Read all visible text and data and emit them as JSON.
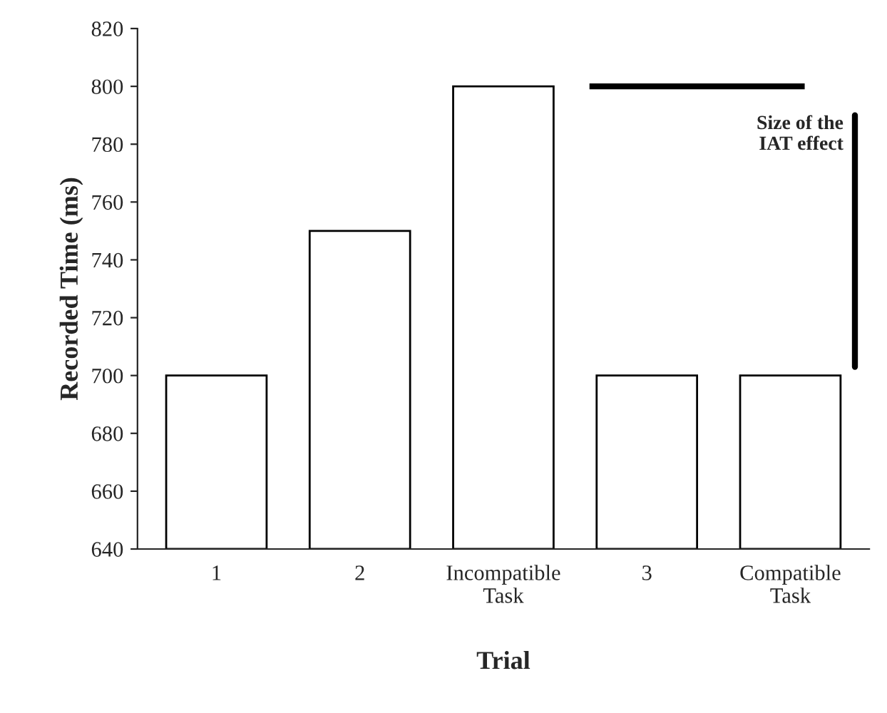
{
  "chart_data": {
    "type": "bar",
    "xlabel": "Trial",
    "ylabel": "Recorded Time (ms)",
    "categories": [
      "1",
      "2",
      "Incompatible\nTask",
      "3",
      "Compatible\nTask"
    ],
    "values": [
      700,
      750,
      800,
      700,
      700
    ],
    "color": "#ffffff",
    "ylim": [
      640,
      820
    ],
    "yticks": [
      640,
      660,
      680,
      700,
      720,
      740,
      760,
      780,
      800,
      820
    ],
    "ref_lines": [
      {
        "axis": "y",
        "value": 800,
        "color": "#000000"
      }
    ],
    "annotations": [
      "Size of the\nIAT effect"
    ]
  }
}
